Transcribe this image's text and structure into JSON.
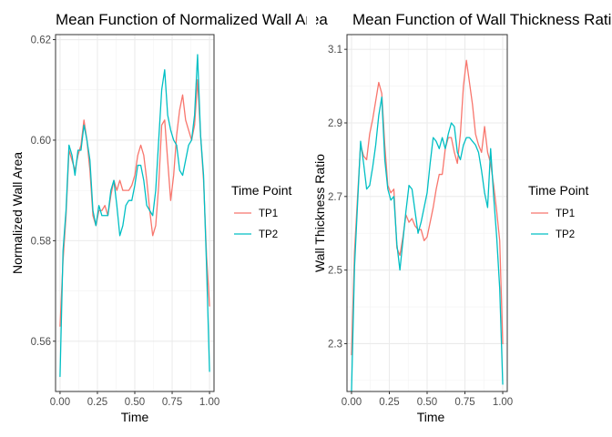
{
  "colors": {
    "TP1": "#F8766D",
    "TP2": "#00BFC4"
  },
  "chart_data": [
    {
      "type": "line",
      "title": "Mean Function of Normalized Wall Area",
      "xlabel": "Time",
      "ylabel": "Normalized Wall Area",
      "xlim": [
        -0.03,
        1.03
      ],
      "ylim": [
        0.55,
        0.621
      ],
      "xticks": [
        0.0,
        0.25,
        0.5,
        0.75,
        1.0
      ],
      "xtick_labels": [
        "0.00",
        "0.25",
        "0.50",
        "0.75",
        "1.00"
      ],
      "yticks": [
        0.56,
        0.58,
        0.6,
        0.62
      ],
      "ytick_labels": [
        "0.56",
        "0.58",
        "0.60",
        "0.62"
      ],
      "grid": true,
      "legend": {
        "title": "Time Point",
        "position": "right",
        "entries": [
          "TP1",
          "TP2"
        ]
      },
      "series": [
        {
          "name": "TP1",
          "x": [
            0.0,
            0.02,
            0.04,
            0.06,
            0.08,
            0.1,
            0.12,
            0.14,
            0.16,
            0.18,
            0.2,
            0.22,
            0.24,
            0.26,
            0.28,
            0.3,
            0.32,
            0.34,
            0.36,
            0.38,
            0.4,
            0.42,
            0.44,
            0.46,
            0.48,
            0.5,
            0.52,
            0.54,
            0.56,
            0.58,
            0.6,
            0.62,
            0.64,
            0.66,
            0.68,
            0.7,
            0.72,
            0.74,
            0.76,
            0.78,
            0.8,
            0.82,
            0.84,
            0.86,
            0.88,
            0.9,
            0.92,
            0.94,
            0.96,
            0.98,
            1.0
          ],
          "values": [
            0.563,
            0.576,
            0.585,
            0.598,
            0.596,
            0.594,
            0.597,
            0.599,
            0.604,
            0.6,
            0.594,
            0.585,
            0.583,
            0.586,
            0.586,
            0.587,
            0.585,
            0.589,
            0.592,
            0.59,
            0.592,
            0.59,
            0.59,
            0.59,
            0.591,
            0.593,
            0.597,
            0.599,
            0.597,
            0.592,
            0.586,
            0.581,
            0.583,
            0.591,
            0.603,
            0.604,
            0.596,
            0.588,
            0.593,
            0.601,
            0.606,
            0.609,
            0.604,
            0.602,
            0.6,
            0.603,
            0.612,
            0.601,
            0.592,
            0.577,
            0.567
          ]
        },
        {
          "name": "TP2",
          "x": [
            0.0,
            0.02,
            0.04,
            0.06,
            0.08,
            0.1,
            0.12,
            0.14,
            0.16,
            0.18,
            0.2,
            0.22,
            0.24,
            0.26,
            0.28,
            0.3,
            0.32,
            0.34,
            0.36,
            0.38,
            0.4,
            0.42,
            0.44,
            0.46,
            0.48,
            0.5,
            0.52,
            0.54,
            0.56,
            0.58,
            0.6,
            0.62,
            0.64,
            0.66,
            0.68,
            0.7,
            0.72,
            0.74,
            0.76,
            0.78,
            0.8,
            0.82,
            0.84,
            0.86,
            0.88,
            0.9,
            0.92,
            0.94,
            0.96,
            0.98,
            1.0
          ],
          "values": [
            0.553,
            0.578,
            0.586,
            0.599,
            0.597,
            0.593,
            0.598,
            0.598,
            0.603,
            0.6,
            0.596,
            0.586,
            0.583,
            0.587,
            0.585,
            0.585,
            0.585,
            0.59,
            0.592,
            0.587,
            0.581,
            0.583,
            0.587,
            0.588,
            0.588,
            0.591,
            0.595,
            0.595,
            0.592,
            0.587,
            0.586,
            0.585,
            0.59,
            0.6,
            0.61,
            0.614,
            0.605,
            0.602,
            0.6,
            0.599,
            0.594,
            0.593,
            0.596,
            0.599,
            0.6,
            0.605,
            0.617,
            0.601,
            0.593,
            0.575,
            0.554
          ]
        }
      ]
    },
    {
      "type": "line",
      "title": "Mean Function of Wall Thickness Ratio",
      "xlabel": "Time",
      "ylabel": "Wall Thickness Ratio",
      "xlim": [
        -0.03,
        1.03
      ],
      "ylim": [
        2.17,
        3.14
      ],
      "xticks": [
        0.0,
        0.25,
        0.5,
        0.75,
        1.0
      ],
      "xtick_labels": [
        "0.00",
        "0.25",
        "0.50",
        "0.75",
        "1.00"
      ],
      "yticks": [
        2.3,
        2.5,
        2.7,
        2.9,
        3.1
      ],
      "ytick_labels": [
        "2.3",
        "2.5",
        "2.7",
        "2.9",
        "3.1"
      ],
      "grid": true,
      "legend": {
        "title": "Time Point",
        "position": "right",
        "entries": [
          "TP1",
          "TP2"
        ]
      },
      "series": [
        {
          "name": "TP1",
          "x": [
            0.0,
            0.02,
            0.04,
            0.06,
            0.08,
            0.1,
            0.12,
            0.14,
            0.16,
            0.18,
            0.2,
            0.22,
            0.24,
            0.26,
            0.28,
            0.3,
            0.32,
            0.34,
            0.36,
            0.38,
            0.4,
            0.42,
            0.44,
            0.46,
            0.48,
            0.5,
            0.52,
            0.54,
            0.56,
            0.58,
            0.6,
            0.62,
            0.64,
            0.66,
            0.68,
            0.7,
            0.72,
            0.74,
            0.76,
            0.78,
            0.8,
            0.82,
            0.84,
            0.86,
            0.88,
            0.9,
            0.92,
            0.94,
            0.96,
            0.98,
            1.0
          ],
          "values": [
            2.27,
            2.55,
            2.7,
            2.84,
            2.81,
            2.8,
            2.87,
            2.91,
            2.96,
            3.01,
            2.98,
            2.84,
            2.73,
            2.71,
            2.72,
            2.56,
            2.54,
            2.59,
            2.65,
            2.63,
            2.64,
            2.62,
            2.61,
            2.61,
            2.58,
            2.59,
            2.63,
            2.67,
            2.72,
            2.76,
            2.76,
            2.83,
            2.86,
            2.86,
            2.82,
            2.79,
            2.87,
            3.0,
            3.07,
            3.01,
            2.95,
            2.87,
            2.84,
            2.82,
            2.89,
            2.82,
            2.79,
            2.73,
            2.66,
            2.58,
            2.3
          ]
        },
        {
          "name": "TP2",
          "x": [
            0.0,
            0.02,
            0.04,
            0.06,
            0.08,
            0.1,
            0.12,
            0.14,
            0.16,
            0.18,
            0.2,
            0.22,
            0.24,
            0.26,
            0.28,
            0.3,
            0.32,
            0.34,
            0.36,
            0.38,
            0.4,
            0.42,
            0.44,
            0.46,
            0.48,
            0.5,
            0.52,
            0.54,
            0.56,
            0.58,
            0.6,
            0.62,
            0.64,
            0.66,
            0.68,
            0.7,
            0.72,
            0.74,
            0.76,
            0.78,
            0.8,
            0.82,
            0.84,
            0.86,
            0.88,
            0.9,
            0.92,
            0.94,
            0.96,
            0.98,
            1.0
          ],
          "values": [
            2.17,
            2.51,
            2.68,
            2.85,
            2.79,
            2.72,
            2.73,
            2.78,
            2.84,
            2.92,
            2.97,
            2.8,
            2.72,
            2.69,
            2.7,
            2.57,
            2.5,
            2.58,
            2.66,
            2.73,
            2.72,
            2.66,
            2.6,
            2.63,
            2.67,
            2.71,
            2.79,
            2.86,
            2.85,
            2.83,
            2.86,
            2.83,
            2.87,
            2.9,
            2.89,
            2.82,
            2.8,
            2.84,
            2.86,
            2.86,
            2.85,
            2.84,
            2.82,
            2.77,
            2.71,
            2.67,
            2.83,
            2.7,
            2.59,
            2.45,
            2.19
          ]
        }
      ]
    }
  ]
}
